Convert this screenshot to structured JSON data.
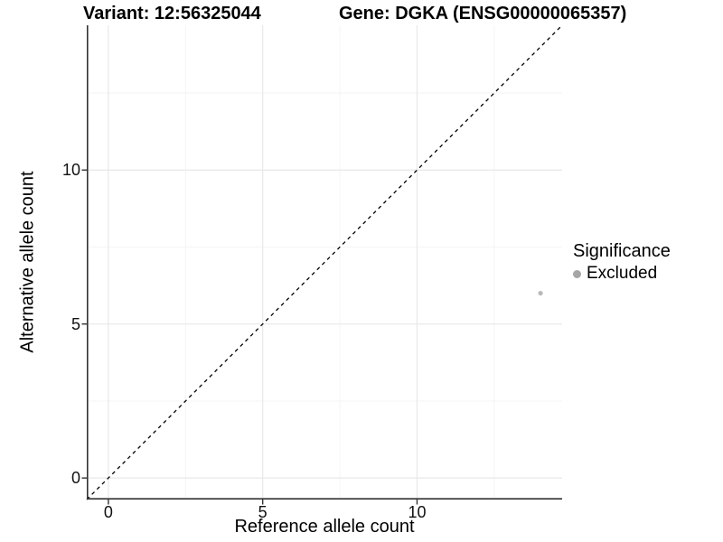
{
  "titles": {
    "left": "Variant: 12:56325044",
    "right": "Gene: DGKA (ENSG00000065357)"
  },
  "chart_data": {
    "type": "scatter",
    "title": "Variant: 12:56325044   Gene: DGKA (ENSG00000065357)",
    "xlabel": "Reference allele count",
    "ylabel": "Alternative allele count",
    "xlim": [
      -0.7,
      14.7
    ],
    "ylim": [
      -0.7,
      14.7
    ],
    "x_ticks": [
      0,
      5,
      10
    ],
    "y_ticks": [
      0,
      5,
      10
    ],
    "x_minor_ticks": [
      2.5,
      7.5,
      12.5
    ],
    "y_minor_ticks": [
      2.5,
      7.5,
      12.5
    ],
    "grid": true,
    "background": "#ffffff",
    "identity_line": {
      "slope": 1,
      "intercept": 0,
      "style": "dashed",
      "color": "#000000"
    },
    "series": [
      {
        "name": "Excluded",
        "color": "#b9b9b9",
        "marker": "circle",
        "points": [
          {
            "x": 14,
            "y": 6
          }
        ]
      }
    ],
    "legend": {
      "title": "Significance",
      "position": "right",
      "entries": [
        {
          "label": "Excluded",
          "color": "#a6a6a6"
        }
      ]
    }
  },
  "colors": {
    "grid_major": "#e8e8e8",
    "grid_minor": "#f3f3f3",
    "axis_line": "#333333",
    "tick_mark": "#333333"
  }
}
